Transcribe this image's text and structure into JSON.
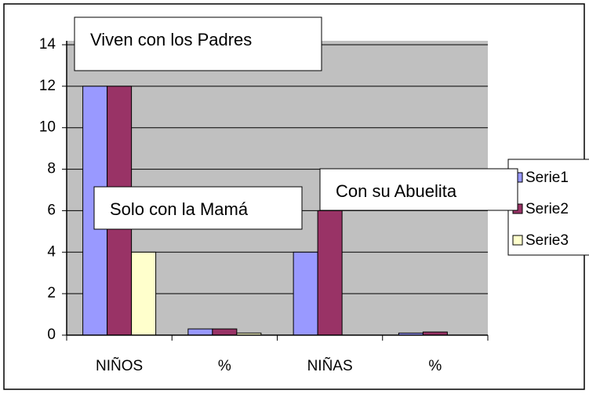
{
  "chart_data": {
    "type": "bar",
    "categories": [
      "NIÑOS",
      "%",
      "NIÑAS",
      "%"
    ],
    "series": [
      {
        "name": "Serie1",
        "color": "#9999ff",
        "values": [
          12,
          0.3,
          4,
          0.1
        ]
      },
      {
        "name": "Serie2",
        "color": "#993366",
        "values": [
          12,
          0.3,
          6,
          0.15
        ]
      },
      {
        "name": "Serie3",
        "color": "#ffffcc",
        "values": [
          4,
          0.1,
          0,
          0
        ]
      }
    ],
    "ylim": [
      0,
      14
    ],
    "yticks": [
      0,
      2,
      4,
      6,
      8,
      10,
      12,
      14
    ],
    "grid": true,
    "legend": "right",
    "plot_color": "#c0c0c0",
    "annotations": [
      "Viven con los Padres",
      "Solo con la Mamá",
      "Con su Abuelita"
    ]
  }
}
